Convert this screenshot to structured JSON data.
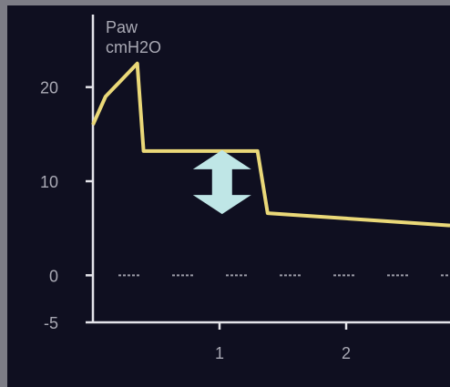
{
  "chart_data": {
    "type": "line",
    "ylabel_lines": [
      "Paw",
      "cmH2O"
    ],
    "y_ticks": [
      20,
      10,
      0,
      -5
    ],
    "x_ticks": [
      1,
      2
    ],
    "xlim": [
      0.0,
      2.82
    ],
    "ylim": [
      -5,
      25
    ],
    "grid": false,
    "baseline": {
      "y": 0,
      "style": "dotted"
    },
    "series": [
      {
        "x": [
          0.0,
          0.1,
          0.35,
          0.4,
          1.3,
          1.38,
          2.82
        ],
        "y": [
          16.0,
          19.0,
          22.5,
          13.2,
          13.2,
          6.6,
          5.3
        ],
        "color": "#ead878"
      }
    ],
    "annotation": {
      "type": "double-arrow",
      "x": 1.02,
      "y_from": 13.2,
      "y_to": 6.6,
      "color": "#bfe6e6"
    }
  }
}
